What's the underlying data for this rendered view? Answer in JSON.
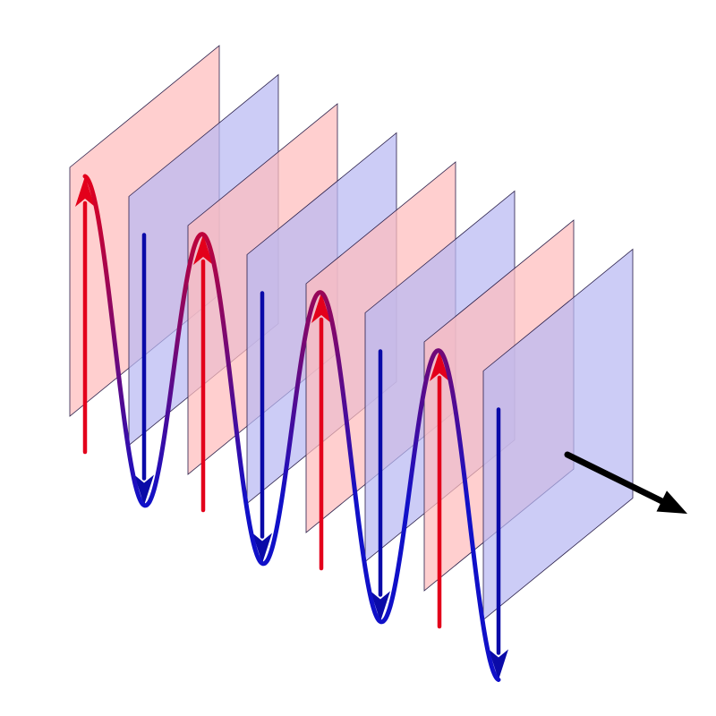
{
  "colors": {
    "background": "#ffffff",
    "crest_plane_fill": "#ffbcbc",
    "trough_plane_fill": "#b9b9f2",
    "plane_edge": "#2a1f4a",
    "crest_arrow": "#e3001b",
    "trough_arrow": "#0a0aa8",
    "wave_crest": "#e3001b",
    "wave_trough": "#1010c8",
    "direction_arrow": "#000000"
  },
  "diagram": {
    "wavefront_count": 8,
    "wavefront_phases": [
      "crest",
      "trough",
      "crest",
      "trough",
      "crest",
      "trough",
      "crest",
      "trough"
    ],
    "icons": [
      "propagation-arrow-icon"
    ]
  }
}
